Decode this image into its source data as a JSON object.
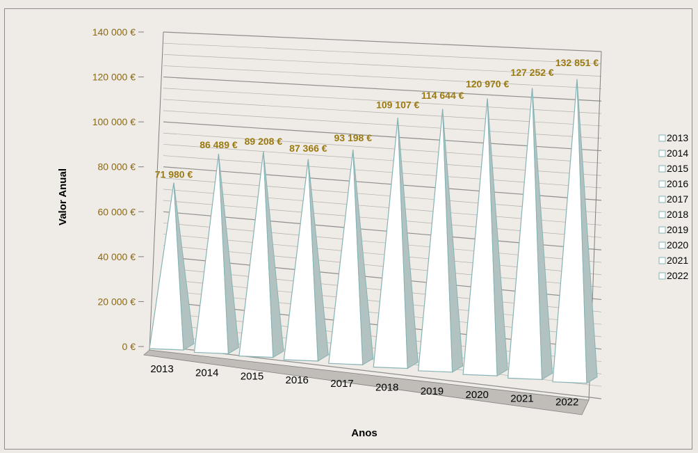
{
  "chart_data": {
    "type": "bar",
    "shape": "3d-pyramid",
    "categories": [
      "2013",
      "2014",
      "2015",
      "2016",
      "2017",
      "2018",
      "2019",
      "2020",
      "2021",
      "2022"
    ],
    "values": [
      71980,
      86489,
      89208,
      87366,
      93198,
      109107,
      114644,
      120970,
      127252,
      132851
    ],
    "data_labels": [
      "71 980 €",
      "86 489 €",
      "89 208 €",
      "87 366 €",
      "93 198 €",
      "109 107 €",
      "114 644 €",
      "120 970 €",
      "127 252 €",
      "132 851 €"
    ],
    "xlabel": "Anos",
    "ylabel": "Valor Anual",
    "ylim": [
      0,
      140000
    ],
    "yticks": [
      0,
      20000,
      40000,
      60000,
      80000,
      100000,
      120000,
      140000
    ],
    "ytick_labels": [
      "0 €",
      "20 000 €",
      "40 000 €",
      "60 000 €",
      "80 000 €",
      "100 000 €",
      "120 000 €",
      "140 000 €"
    ],
    "grid": true,
    "legend": {
      "position": "right",
      "entries": [
        "2013",
        "2014",
        "2015",
        "2016",
        "2017",
        "2018",
        "2019",
        "2020",
        "2021",
        "2022"
      ]
    },
    "colors": {
      "pyramid_face": "#ffffff",
      "pyramid_side": "#b2c2c0",
      "pyramid_edge": "#86b3b4",
      "gridline": "#7f7f7f",
      "floor": "#c0bdb9",
      "label_color": "#9a7a10",
      "tick_color": "#8b6914"
    }
  }
}
